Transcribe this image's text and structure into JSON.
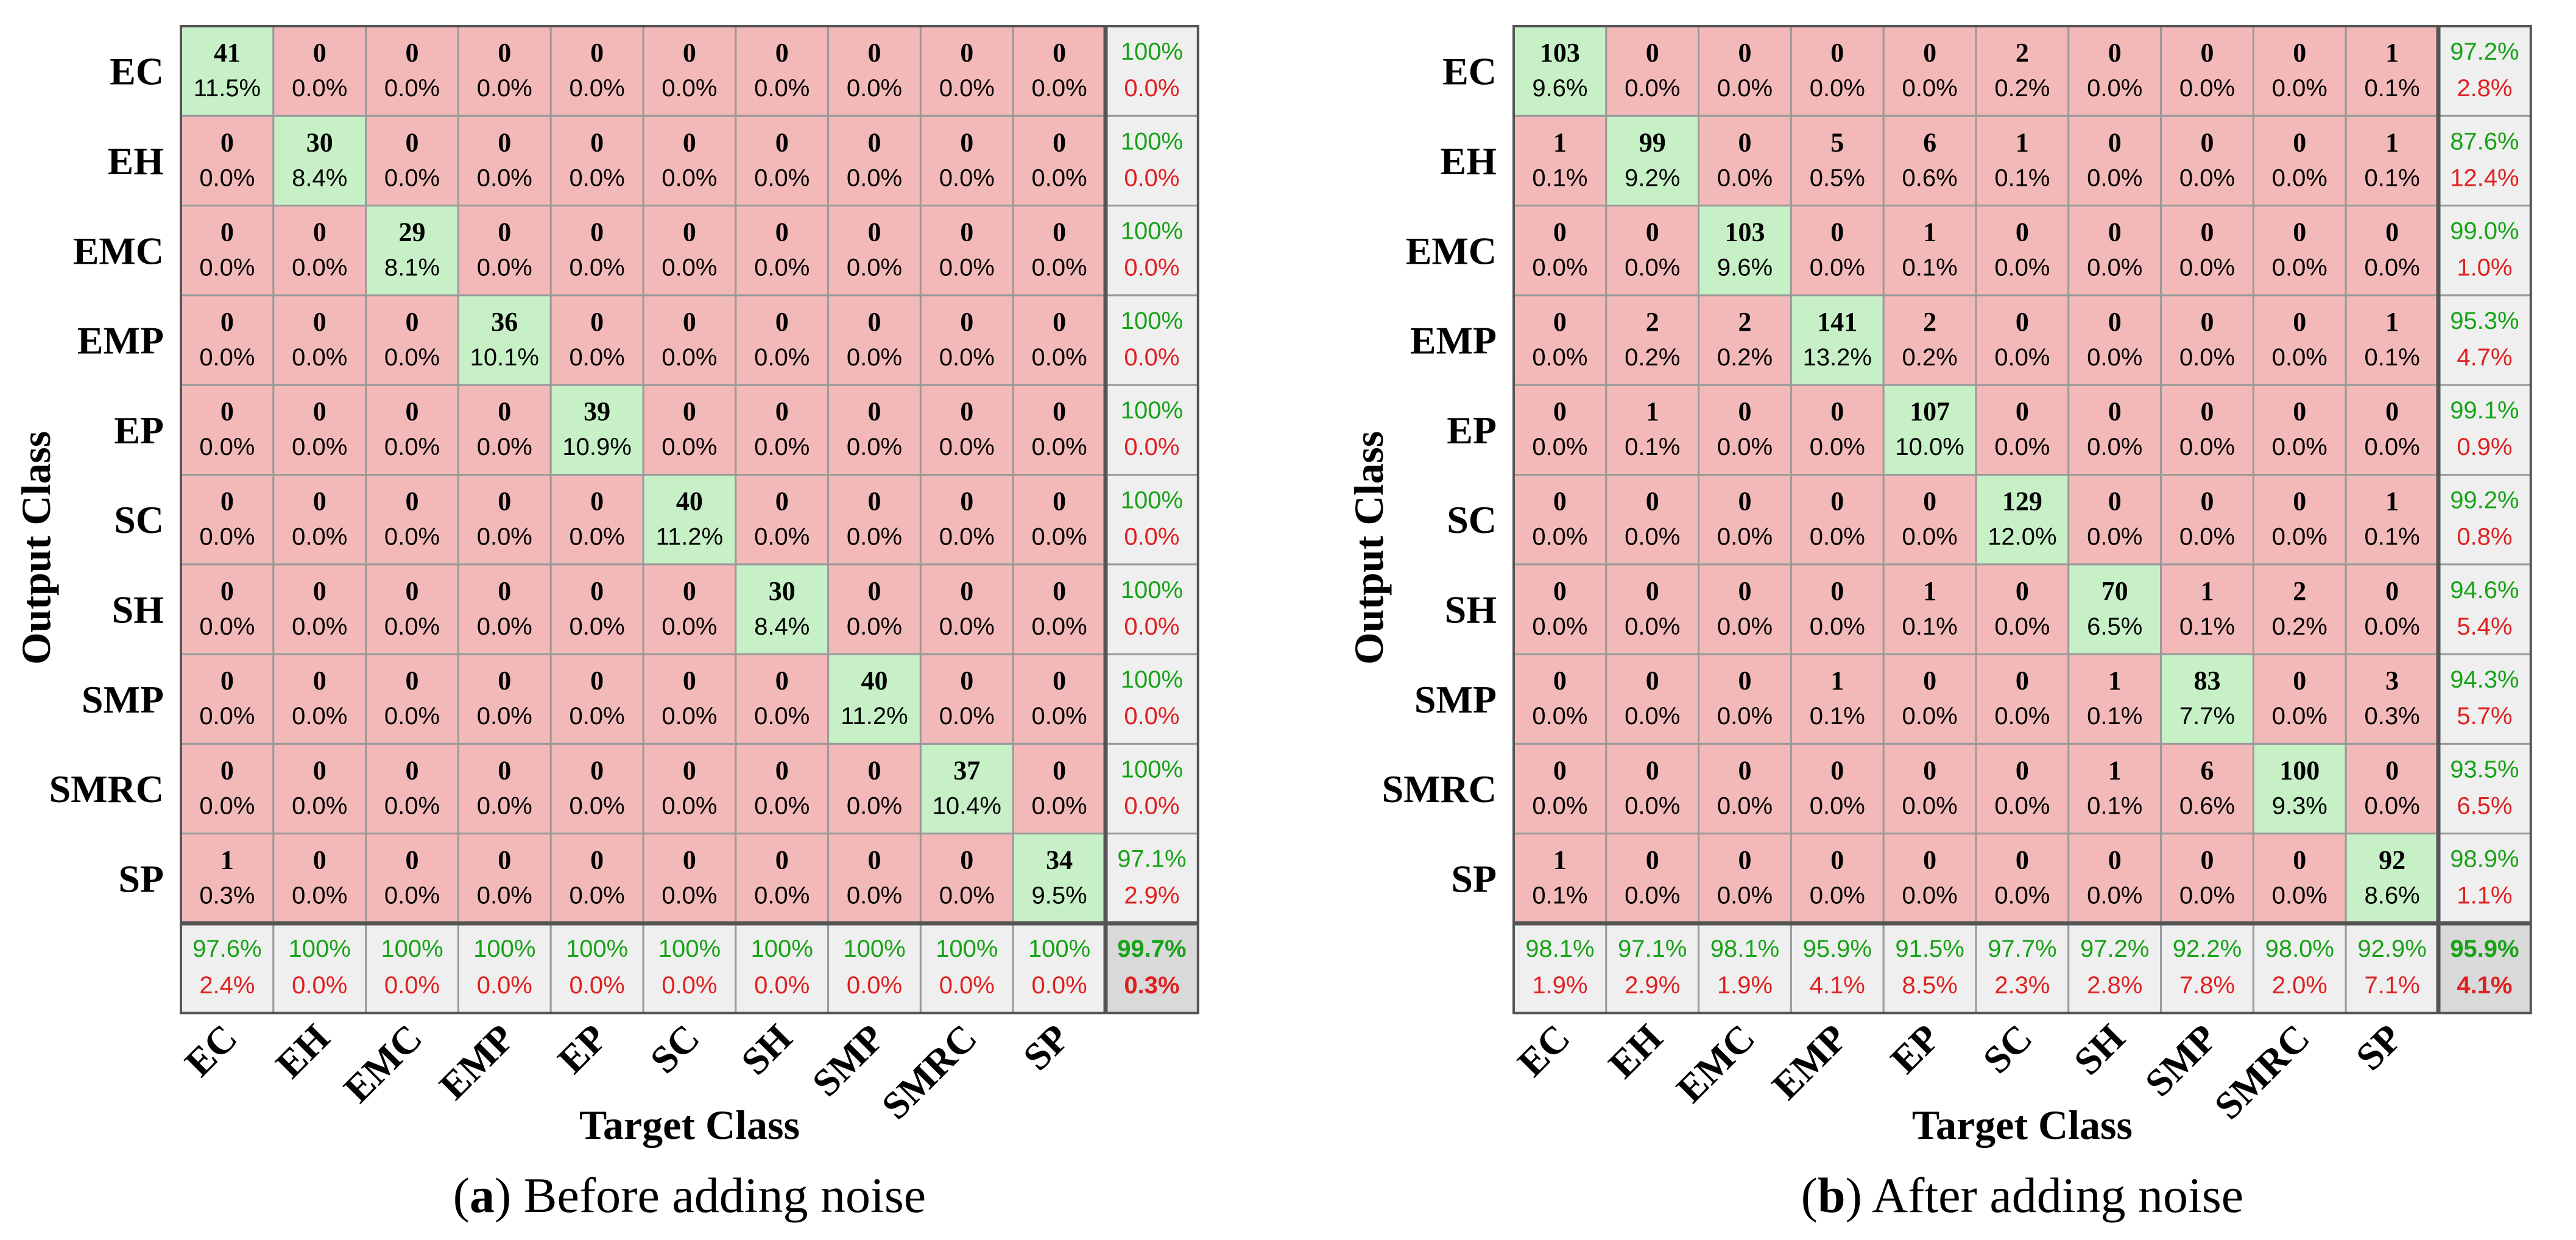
{
  "colors": {
    "diag": "#c7f0c7",
    "off": "#f3b9b9",
    "summary": "#efefef",
    "total": "#d9d9d9",
    "green_text": "#16a316",
    "red_text": "#e02020",
    "grid": "#9a9a9a",
    "frame": "#555555"
  },
  "chart_data": [
    {
      "type": "heatmap",
      "panel_id": "a",
      "caption_letter": "a",
      "caption_paren_open": "(",
      "caption_paren_close": ")",
      "caption_text": " Before adding noise",
      "ylabel": "Output Class",
      "xlabel": "Target Class",
      "row_labels": [
        "EC",
        "EH",
        "EMC",
        "EMP",
        "EP",
        "SC",
        "SH",
        "SMP",
        "SMRC",
        "SP"
      ],
      "col_labels": [
        "EC",
        "EH",
        "EMC",
        "EMP",
        "EP",
        "SC",
        "SH",
        "SMP",
        "SMRC",
        "SP"
      ],
      "counts": [
        [
          41,
          0,
          0,
          0,
          0,
          0,
          0,
          0,
          0,
          0
        ],
        [
          0,
          30,
          0,
          0,
          0,
          0,
          0,
          0,
          0,
          0
        ],
        [
          0,
          0,
          29,
          0,
          0,
          0,
          0,
          0,
          0,
          0
        ],
        [
          0,
          0,
          0,
          36,
          0,
          0,
          0,
          0,
          0,
          0
        ],
        [
          0,
          0,
          0,
          0,
          39,
          0,
          0,
          0,
          0,
          0
        ],
        [
          0,
          0,
          0,
          0,
          0,
          40,
          0,
          0,
          0,
          0
        ],
        [
          0,
          0,
          0,
          0,
          0,
          0,
          30,
          0,
          0,
          0
        ],
        [
          0,
          0,
          0,
          0,
          0,
          0,
          0,
          40,
          0,
          0
        ],
        [
          0,
          0,
          0,
          0,
          0,
          0,
          0,
          0,
          37,
          0
        ],
        [
          1,
          0,
          0,
          0,
          0,
          0,
          0,
          0,
          0,
          34
        ]
      ],
      "percents": [
        [
          "11.5%",
          "0.0%",
          "0.0%",
          "0.0%",
          "0.0%",
          "0.0%",
          "0.0%",
          "0.0%",
          "0.0%",
          "0.0%"
        ],
        [
          "0.0%",
          "8.4%",
          "0.0%",
          "0.0%",
          "0.0%",
          "0.0%",
          "0.0%",
          "0.0%",
          "0.0%",
          "0.0%"
        ],
        [
          "0.0%",
          "0.0%",
          "8.1%",
          "0.0%",
          "0.0%",
          "0.0%",
          "0.0%",
          "0.0%",
          "0.0%",
          "0.0%"
        ],
        [
          "0.0%",
          "0.0%",
          "0.0%",
          "10.1%",
          "0.0%",
          "0.0%",
          "0.0%",
          "0.0%",
          "0.0%",
          "0.0%"
        ],
        [
          "0.0%",
          "0.0%",
          "0.0%",
          "0.0%",
          "10.9%",
          "0.0%",
          "0.0%",
          "0.0%",
          "0.0%",
          "0.0%"
        ],
        [
          "0.0%",
          "0.0%",
          "0.0%",
          "0.0%",
          "0.0%",
          "11.2%",
          "0.0%",
          "0.0%",
          "0.0%",
          "0.0%"
        ],
        [
          "0.0%",
          "0.0%",
          "0.0%",
          "0.0%",
          "0.0%",
          "0.0%",
          "8.4%",
          "0.0%",
          "0.0%",
          "0.0%"
        ],
        [
          "0.0%",
          "0.0%",
          "0.0%",
          "0.0%",
          "0.0%",
          "0.0%",
          "0.0%",
          "11.2%",
          "0.0%",
          "0.0%"
        ],
        [
          "0.0%",
          "0.0%",
          "0.0%",
          "0.0%",
          "0.0%",
          "0.0%",
          "0.0%",
          "0.0%",
          "10.4%",
          "0.0%"
        ],
        [
          "0.3%",
          "0.0%",
          "0.0%",
          "0.0%",
          "0.0%",
          "0.0%",
          "0.0%",
          "0.0%",
          "0.0%",
          "9.5%"
        ]
      ],
      "row_precision": [
        [
          "100%",
          "0.0%"
        ],
        [
          "100%",
          "0.0%"
        ],
        [
          "100%",
          "0.0%"
        ],
        [
          "100%",
          "0.0%"
        ],
        [
          "100%",
          "0.0%"
        ],
        [
          "100%",
          "0.0%"
        ],
        [
          "100%",
          "0.0%"
        ],
        [
          "100%",
          "0.0%"
        ],
        [
          "100%",
          "0.0%"
        ],
        [
          "97.1%",
          "2.9%"
        ]
      ],
      "col_recall": [
        [
          "97.6%",
          "2.4%"
        ],
        [
          "100%",
          "0.0%"
        ],
        [
          "100%",
          "0.0%"
        ],
        [
          "100%",
          "0.0%"
        ],
        [
          "100%",
          "0.0%"
        ],
        [
          "100%",
          "0.0%"
        ],
        [
          "100%",
          "0.0%"
        ],
        [
          "100%",
          "0.0%"
        ],
        [
          "100%",
          "0.0%"
        ],
        [
          "100%",
          "0.0%"
        ]
      ],
      "overall": [
        "99.7%",
        "0.3%"
      ]
    },
    {
      "type": "heatmap",
      "panel_id": "b",
      "caption_letter": "b",
      "caption_paren_open": "(",
      "caption_paren_close": ")",
      "caption_text": " After adding noise",
      "ylabel": "Output Class",
      "xlabel": "Target Class",
      "row_labels": [
        "EC",
        "EH",
        "EMC",
        "EMP",
        "EP",
        "SC",
        "SH",
        "SMP",
        "SMRC",
        "SP"
      ],
      "col_labels": [
        "EC",
        "EH",
        "EMC",
        "EMP",
        "EP",
        "SC",
        "SH",
        "SMP",
        "SMRC",
        "SP"
      ],
      "counts": [
        [
          103,
          0,
          0,
          0,
          0,
          2,
          0,
          0,
          0,
          1
        ],
        [
          1,
          99,
          0,
          5,
          6,
          1,
          0,
          0,
          0,
          1
        ],
        [
          0,
          0,
          103,
          0,
          1,
          0,
          0,
          0,
          0,
          0
        ],
        [
          0,
          2,
          2,
          141,
          2,
          0,
          0,
          0,
          0,
          1
        ],
        [
          0,
          1,
          0,
          0,
          107,
          0,
          0,
          0,
          0,
          0
        ],
        [
          0,
          0,
          0,
          0,
          0,
          129,
          0,
          0,
          0,
          1
        ],
        [
          0,
          0,
          0,
          0,
          1,
          0,
          70,
          1,
          2,
          0
        ],
        [
          0,
          0,
          0,
          1,
          0,
          0,
          1,
          83,
          0,
          3
        ],
        [
          0,
          0,
          0,
          0,
          0,
          0,
          1,
          6,
          100,
          0
        ],
        [
          1,
          0,
          0,
          0,
          0,
          0,
          0,
          0,
          0,
          92
        ]
      ],
      "percents": [
        [
          "9.6%",
          "0.0%",
          "0.0%",
          "0.0%",
          "0.0%",
          "0.2%",
          "0.0%",
          "0.0%",
          "0.0%",
          "0.1%"
        ],
        [
          "0.1%",
          "9.2%",
          "0.0%",
          "0.5%",
          "0.6%",
          "0.1%",
          "0.0%",
          "0.0%",
          "0.0%",
          "0.1%"
        ],
        [
          "0.0%",
          "0.0%",
          "9.6%",
          "0.0%",
          "0.1%",
          "0.0%",
          "0.0%",
          "0.0%",
          "0.0%",
          "0.0%"
        ],
        [
          "0.0%",
          "0.2%",
          "0.2%",
          "13.2%",
          "0.2%",
          "0.0%",
          "0.0%",
          "0.0%",
          "0.0%",
          "0.1%"
        ],
        [
          "0.0%",
          "0.1%",
          "0.0%",
          "0.0%",
          "10.0%",
          "0.0%",
          "0.0%",
          "0.0%",
          "0.0%",
          "0.0%"
        ],
        [
          "0.0%",
          "0.0%",
          "0.0%",
          "0.0%",
          "0.0%",
          "12.0%",
          "0.0%",
          "0.0%",
          "0.0%",
          "0.1%"
        ],
        [
          "0.0%",
          "0.0%",
          "0.0%",
          "0.0%",
          "0.1%",
          "0.0%",
          "6.5%",
          "0.1%",
          "0.2%",
          "0.0%"
        ],
        [
          "0.0%",
          "0.0%",
          "0.0%",
          "0.1%",
          "0.0%",
          "0.0%",
          "0.1%",
          "7.7%",
          "0.0%",
          "0.3%"
        ],
        [
          "0.0%",
          "0.0%",
          "0.0%",
          "0.0%",
          "0.0%",
          "0.0%",
          "0.1%",
          "0.6%",
          "9.3%",
          "0.0%"
        ],
        [
          "0.1%",
          "0.0%",
          "0.0%",
          "0.0%",
          "0.0%",
          "0.0%",
          "0.0%",
          "0.0%",
          "0.0%",
          "8.6%"
        ]
      ],
      "row_precision": [
        [
          "97.2%",
          "2.8%"
        ],
        [
          "87.6%",
          "12.4%"
        ],
        [
          "99.0%",
          "1.0%"
        ],
        [
          "95.3%",
          "4.7%"
        ],
        [
          "99.1%",
          "0.9%"
        ],
        [
          "99.2%",
          "0.8%"
        ],
        [
          "94.6%",
          "5.4%"
        ],
        [
          "94.3%",
          "5.7%"
        ],
        [
          "93.5%",
          "6.5%"
        ],
        [
          "98.9%",
          "1.1%"
        ]
      ],
      "col_recall": [
        [
          "98.1%",
          "1.9%"
        ],
        [
          "97.1%",
          "2.9%"
        ],
        [
          "98.1%",
          "1.9%"
        ],
        [
          "95.9%",
          "4.1%"
        ],
        [
          "91.5%",
          "8.5%"
        ],
        [
          "97.7%",
          "2.3%"
        ],
        [
          "97.2%",
          "2.8%"
        ],
        [
          "92.2%",
          "7.8%"
        ],
        [
          "98.0%",
          "2.0%"
        ],
        [
          "92.9%",
          "7.1%"
        ]
      ],
      "overall": [
        "95.9%",
        "4.1%"
      ]
    }
  ]
}
